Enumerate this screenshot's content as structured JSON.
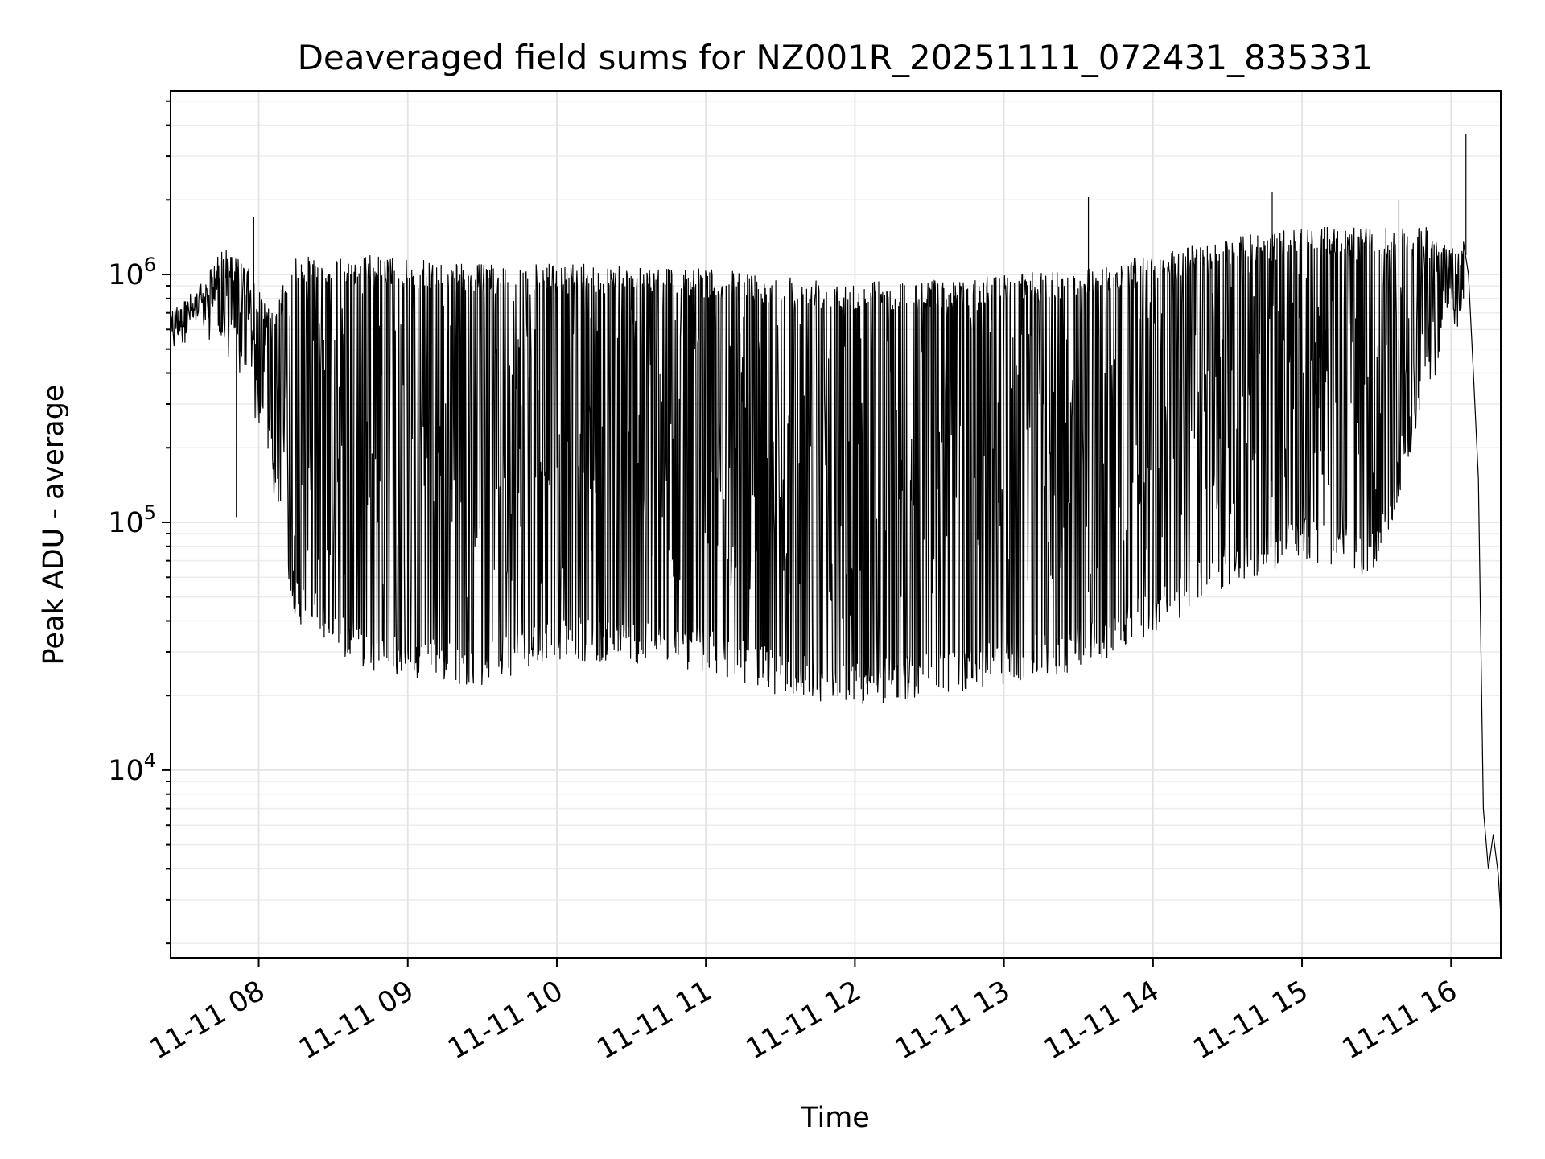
{
  "chart_data": {
    "type": "line",
    "title": "Deaveraged field sums for NZ001R_20251111_072431_835331",
    "xlabel": "Time",
    "ylabel": "Peak ADU - average",
    "yscale": "log",
    "grid": true,
    "x_range": [
      "2025-11-11T07:24:31",
      "2025-11-11T16:20:00"
    ],
    "ylim": [
      1750,
      5500000
    ],
    "x_ticks": [
      {
        "t": "2025-11-11T08:00:00",
        "label": "11-11 08"
      },
      {
        "t": "2025-11-11T09:00:00",
        "label": "11-11 09"
      },
      {
        "t": "2025-11-11T10:00:00",
        "label": "11-11 10"
      },
      {
        "t": "2025-11-11T11:00:00",
        "label": "11-11 11"
      },
      {
        "t": "2025-11-11T12:00:00",
        "label": "11-11 12"
      },
      {
        "t": "2025-11-11T13:00:00",
        "label": "11-11 13"
      },
      {
        "t": "2025-11-11T14:00:00",
        "label": "11-11 14"
      },
      {
        "t": "2025-11-11T15:00:00",
        "label": "11-11 15"
      },
      {
        "t": "2025-11-11T16:00:00",
        "label": "11-11 16"
      }
    ],
    "y_ticks": [
      {
        "value": 10000,
        "base": "10",
        "exp": "4"
      },
      {
        "value": 100000,
        "base": "10",
        "exp": "5"
      },
      {
        "value": 1000000,
        "base": "10",
        "exp": "6"
      }
    ],
    "series": [
      {
        "color": "#000000",
        "envelope": {
          "x": [
            "2025-11-11T07:24:31",
            "2025-11-11T07:35:00",
            "2025-11-11T07:45:00",
            "2025-11-11T07:55:00",
            "2025-11-11T08:05:00",
            "2025-11-11T08:15:00",
            "2025-11-11T08:30:00",
            "2025-11-11T08:45:00",
            "2025-11-11T09:00:00",
            "2025-11-11T09:30:00",
            "2025-11-11T10:00:00",
            "2025-11-11T10:30:00",
            "2025-11-11T11:00:00",
            "2025-11-11T11:30:00",
            "2025-11-11T12:00:00",
            "2025-11-11T12:30:00",
            "2025-11-11T13:00:00",
            "2025-11-11T13:30:00",
            "2025-11-11T14:00:00",
            "2025-11-11T14:30:00",
            "2025-11-11T15:00:00",
            "2025-11-11T15:30:00",
            "2025-11-11T15:50:00",
            "2025-11-11T16:00:00"
          ],
          "upper": [
            750000,
            850000,
            1300000,
            1100000,
            700000,
            1200000,
            1150000,
            1200000,
            1150000,
            1100000,
            1100000,
            1100000,
            1050000,
            1000000,
            950000,
            950000,
            1000000,
            1050000,
            1200000,
            1400000,
            1550000,
            1550000,
            1550000,
            1300000
          ],
          "lower": [
            450000,
            600000,
            500000,
            350000,
            150000,
            40000,
            30000,
            25000,
            23000,
            22000,
            28000,
            27000,
            25000,
            20000,
            18000,
            20000,
            22000,
            25000,
            35000,
            55000,
            70000,
            60000,
            300000,
            600000
          ]
        },
        "spikes": [
          {
            "t": "2025-11-11T07:51:00",
            "value": 105000
          },
          {
            "t": "2025-11-11T07:58:00",
            "value": 1700000
          },
          {
            "t": "2025-11-11T13:34:00",
            "value": 2050000
          },
          {
            "t": "2025-11-11T14:48:00",
            "value": 2150000
          },
          {
            "t": "2025-11-11T15:39:00",
            "value": 2000000
          },
          {
            "t": "2025-11-11T16:06:00",
            "value": 3700000
          }
        ],
        "tail": {
          "x": [
            "2025-11-11T16:05:00",
            "2025-11-11T16:07:00",
            "2025-11-11T16:09:00",
            "2025-11-11T16:11:00",
            "2025-11-11T16:13:00",
            "2025-11-11T16:15:00",
            "2025-11-11T16:17:00",
            "2025-11-11T16:19:00",
            "2025-11-11T16:20:00"
          ],
          "values": [
            1350000,
            1000000,
            400000,
            150000,
            7000,
            4000,
            5500,
            3800,
            2600
          ]
        }
      }
    ]
  }
}
